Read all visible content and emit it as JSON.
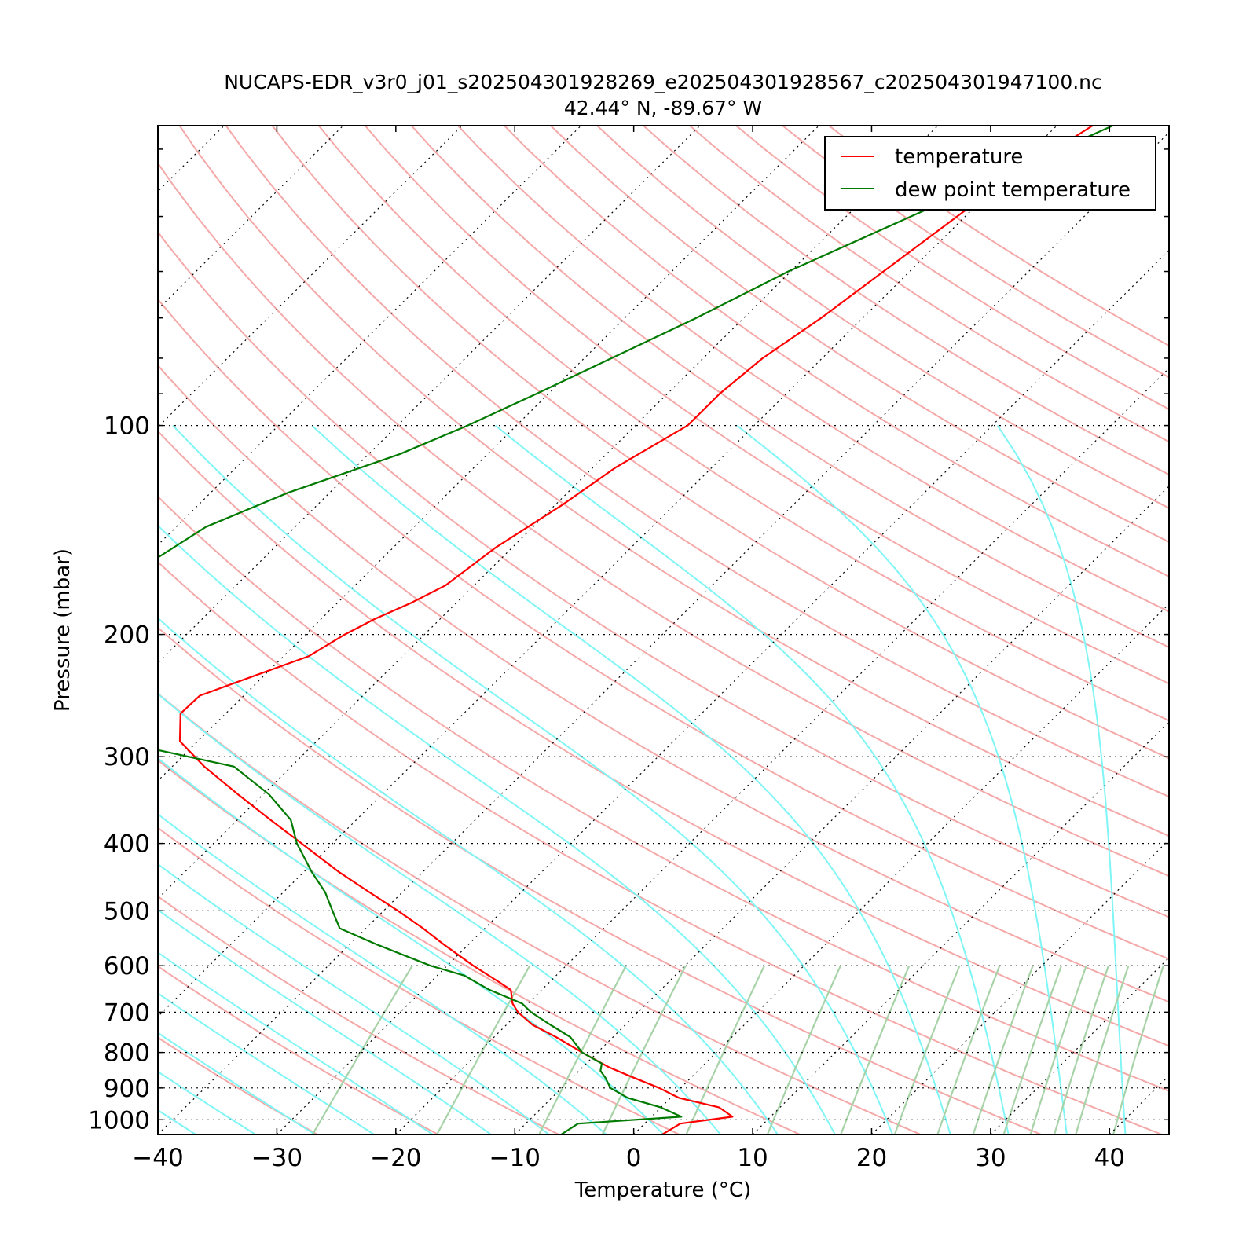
{
  "chart_data": {
    "type": "line",
    "title": "NUCAPS-EDR_v3r0_j01_s202504301928269_e202504301928567_c202504301947100.nc",
    "subtitle": "42.44° N, -89.67° W",
    "xlabel": "Temperature (°C)",
    "ylabel": "Pressure (mbar)",
    "x_ticks": [
      -40,
      -30,
      -20,
      -10,
      0,
      10,
      20,
      30,
      40
    ],
    "y_ticks": [
      100,
      200,
      300,
      400,
      500,
      600,
      700,
      800,
      900,
      1000
    ],
    "xlim": [
      -40,
      45
    ],
    "ylim": [
      1050,
      37
    ],
    "y_scale": "log",
    "skew": true,
    "grid": true,
    "legend_position": "top-right",
    "colors": {
      "temperature": "#ff0000",
      "dewpoint": "#007a00",
      "dry_adiabats": "#f4a8a8",
      "moist_adiabats": "#7ff5f5",
      "mixing_ratio": "#a8d3a8",
      "grid": "#000000"
    },
    "series": [
      {
        "name": "temperature",
        "pressure": [
          1050,
          1013,
          990,
          960,
          930,
          900,
          870,
          840,
          800,
          760,
          730,
          700,
          680,
          650,
          630,
          600,
          560,
          530,
          500,
          470,
          440,
          400,
          370,
          340,
          310,
          285,
          260,
          245,
          230,
          215,
          200,
          190,
          180,
          170,
          150,
          130,
          115,
          100,
          90,
          80,
          70,
          60,
          45,
          37
        ],
        "values": [
          2.4,
          3.0,
          6.8,
          4.9,
          0.7,
          -1.8,
          -4.8,
          -7.8,
          -11.3,
          -14.8,
          -17.8,
          -20.1,
          -21.3,
          -22.6,
          -24.6,
          -27.8,
          -32.0,
          -35.2,
          -38.8,
          -42.8,
          -47.0,
          -52.6,
          -57.2,
          -62.1,
          -67.3,
          -71.5,
          -73.8,
          -73.7,
          -70.9,
          -67.9,
          -66.7,
          -65.5,
          -63.8,
          -62.4,
          -61.4,
          -59.4,
          -58.1,
          -55.6,
          -55.6,
          -55.0,
          -53.5,
          -52.2,
          -49.8,
          -47.0
        ]
      },
      {
        "name": "dew point temperature",
        "pressure": [
          1050,
          1013,
          990,
          960,
          930,
          900,
          870,
          850,
          830,
          800,
          760,
          730,
          700,
          680,
          650,
          620,
          600,
          560,
          530,
          500,
          470,
          440,
          400,
          370,
          340,
          310,
          290,
          270,
          240,
          220,
          200,
          190,
          175,
          160,
          140,
          125,
          110,
          100,
          90,
          80,
          70,
          60,
          45,
          37
        ],
        "values": [
          -6.1,
          -5.6,
          2.5,
          0.0,
          -3.6,
          -5.9,
          -7.2,
          -8.2,
          -8.7,
          -11.3,
          -13.6,
          -16.3,
          -19.0,
          -20.5,
          -24.4,
          -27.7,
          -31.4,
          -37.6,
          -42.2,
          -44.3,
          -46.5,
          -49.3,
          -53.0,
          -55.5,
          -59.5,
          -64.8,
          -74.3,
          -79.7,
          -84.6,
          -87.5,
          -90.2,
          -90.6,
          -91.1,
          -89.4,
          -87.5,
          -83.5,
          -77.4,
          -74.1,
          -71.0,
          -67.7,
          -64.0,
          -60.2,
          -51.3,
          -45.3
        ]
      }
    ],
    "legend": [
      {
        "label": "temperature",
        "color": "#ff0000"
      },
      {
        "label": "dew point temperature",
        "color": "#007a00"
      }
    ]
  }
}
